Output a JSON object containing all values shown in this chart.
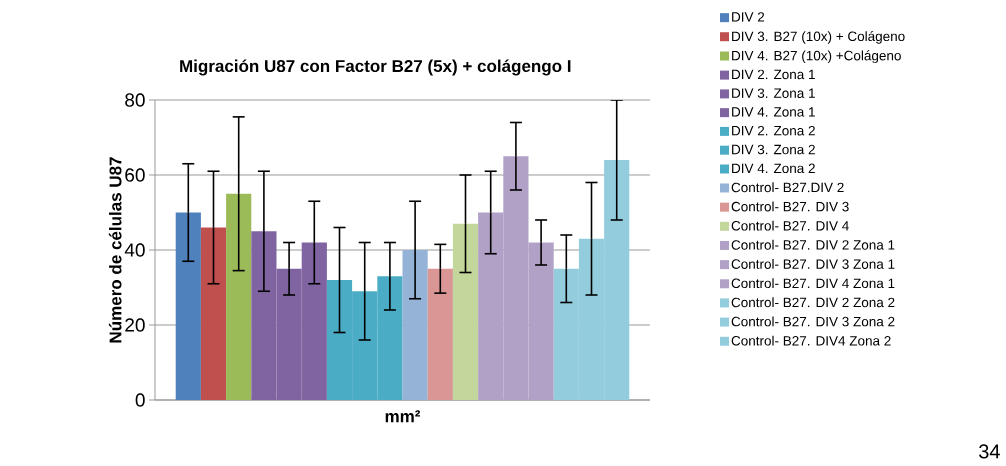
{
  "chart_data": {
    "type": "bar",
    "title": "Migración U87 con Factor B27 (5x) + colágengo I",
    "xlabel": "mm²",
    "ylabel": "Número de células U87",
    "categories": [
      null
    ],
    "series": [
      {
        "name": "DIV 2",
        "color": "#4f81bd",
        "values": [
          50
        ],
        "errors": [
          [
            37,
            63
          ]
        ]
      },
      {
        "name": "DIV 3. B27 (10x) + Colágeno",
        "color": "#c0504d",
        "values": [
          46
        ],
        "errors": [
          [
            31,
            61
          ]
        ]
      },
      {
        "name": "DIV 4. B27 (10x) +Colágeno",
        "color": "#9bbb59",
        "values": [
          55
        ],
        "errors": [
          [
            34.5,
            75.5
          ]
        ]
      },
      {
        "name": "DIV 2. Zona 1",
        "color": "#8064a2",
        "values": [
          45
        ],
        "errors": [
          [
            29,
            61
          ]
        ]
      },
      {
        "name": "DIV 3. Zona 1",
        "color": "#8064a2",
        "values": [
          35
        ],
        "errors": [
          [
            28,
            42
          ]
        ]
      },
      {
        "name": "DIV 4. Zona 1",
        "color": "#8064a2",
        "values": [
          42
        ],
        "errors": [
          [
            31,
            53
          ]
        ]
      },
      {
        "name": "DIV 2. Zona 2",
        "color": "#4bacc6",
        "values": [
          32
        ],
        "errors": [
          [
            18,
            46
          ]
        ]
      },
      {
        "name": "DIV 3. Zona 2",
        "color": "#4bacc6",
        "values": [
          29
        ],
        "errors": [
          [
            16,
            42
          ]
        ]
      },
      {
        "name": "DIV 4. Zona 2",
        "color": "#4bacc6",
        "values": [
          33
        ],
        "errors": [
          [
            24,
            42
          ]
        ]
      },
      {
        "name": "Control- B27.DIV 2",
        "color": "#95b3d7",
        "values": [
          40
        ],
        "errors": [
          [
            27,
            53
          ]
        ]
      },
      {
        "name": "Control- B27. DIV 3",
        "color": "#d99694",
        "values": [
          35
        ],
        "errors": [
          [
            28.5,
            41.5
          ]
        ]
      },
      {
        "name": "Control- B27. DIV 4",
        "color": "#c3d69b",
        "values": [
          47
        ],
        "errors": [
          [
            34,
            60
          ]
        ]
      },
      {
        "name": "Control- B27. DIV 2 Zona 1",
        "color": "#b2a1c7",
        "values": [
          50
        ],
        "errors": [
          [
            39,
            61
          ]
        ]
      },
      {
        "name": "Control- B27. DIV 3 Zona 1",
        "color": "#b2a1c7",
        "values": [
          65
        ],
        "errors": [
          [
            56,
            74
          ]
        ]
      },
      {
        "name": "Control- B27. DIV 4 Zona 1",
        "color": "#b2a1c7",
        "values": [
          42
        ],
        "errors": [
          [
            36,
            48
          ]
        ]
      },
      {
        "name": "Control- B27. DIV 2 Zona 2",
        "color": "#93cddd",
        "values": [
          35
        ],
        "errors": [
          [
            26,
            44
          ]
        ]
      },
      {
        "name": "Control- B27. DIV 3 Zona 2",
        "color": "#93cddd",
        "values": [
          43
        ],
        "errors": [
          [
            28,
            58
          ]
        ]
      },
      {
        "name": "Control- B27. DIV4 Zona 2",
        "color": "#93cddd",
        "values": [
          64
        ],
        "errors": [
          [
            48,
            80
          ]
        ]
      }
    ],
    "ylim": [
      0,
      80
    ],
    "yticks": [
      0,
      20,
      40,
      60,
      80
    ],
    "grid": "y",
    "legend": "right",
    "annotations": [
      "34"
    ]
  }
}
